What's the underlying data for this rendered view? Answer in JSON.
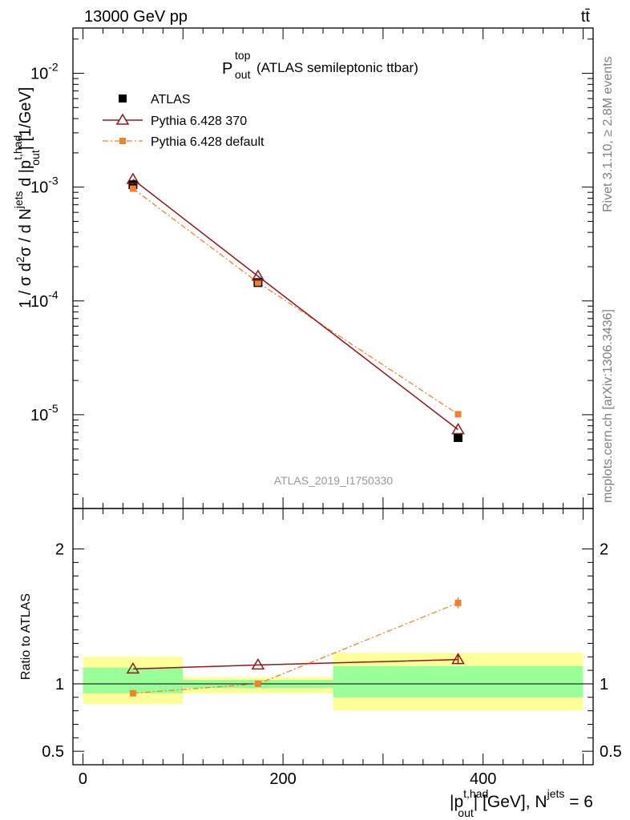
{
  "header": {
    "energy_label": "13000 GeV pp",
    "process_label": "tt̄"
  },
  "side_text": {
    "rivet": "Rivet 3.1.10, ≥ 2.8M events",
    "mcplots": "mcplots.cern.ch [arXiv:1306.3436]"
  },
  "chart_data": [
    {
      "type": "line",
      "title": "(ATLAS semileptonic ttbar)",
      "title_symbol": {
        "base": "P",
        "sup": "top",
        "sub": "out"
      },
      "ylabel": {
        "parts": [
          "1 / σ d",
          "2",
          "σ / d N",
          "jets",
          " d |p",
          "t,had",
          "out",
          "| [1/GeV]"
        ]
      },
      "yscale": "log",
      "ylim": [
        1.5e-06,
        0.025
      ],
      "xlim": [
        -10,
        510
      ],
      "y_ticks": [
        {
          "value": 0.01,
          "base": "10",
          "exp": "-2"
        },
        {
          "value": 0.001,
          "base": "10",
          "exp": "-3"
        },
        {
          "value": 0.0001,
          "base": "10",
          "exp": "-4"
        },
        {
          "value": 1e-05,
          "base": "10",
          "exp": "-5"
        }
      ],
      "analysis_label": "ATLAS_2019_I1750330",
      "legend_position": "top-left",
      "series": [
        {
          "name": "ATLAS",
          "color": "#000000",
          "marker": "square",
          "x": [
            50,
            175,
            375
          ],
          "y": [
            0.00105,
            0.000145,
            6.3e-06
          ]
        },
        {
          "name": "Pythia 6.428 370",
          "color": "#8b1a1a",
          "marker": "triangle-open",
          "x": [
            50,
            175,
            375
          ],
          "y": [
            0.00117,
            0.000165,
            7.4e-06
          ]
        },
        {
          "name": "Pythia 6.428 default",
          "color": "#f47f2c",
          "marker": "small-square",
          "dashed": true,
          "x": [
            50,
            175,
            375
          ],
          "y": [
            0.00097,
            0.000145,
            1.01e-05
          ]
        }
      ]
    },
    {
      "type": "line",
      "ylabel": "Ratio to ATLAS",
      "ylim": [
        0.4,
        2.3
      ],
      "y_ticks": [
        {
          "value": 0.5,
          "label": "0.5"
        },
        {
          "value": 1,
          "label": "1"
        },
        {
          "value": 2,
          "label": "2"
        }
      ],
      "xlim": [
        -10,
        510
      ],
      "x_ticks": [
        {
          "value": 0,
          "label": "0"
        },
        {
          "value": 200,
          "label": "200"
        },
        {
          "value": 400,
          "label": "400"
        }
      ],
      "xlabel": {
        "parts": [
          "|p",
          "t,had",
          "out",
          "| [GeV], N",
          "jets",
          " = 6"
        ]
      },
      "bands": [
        {
          "x": [
            0,
            100
          ],
          "yellow": [
            0.85,
            1.2
          ],
          "green": [
            0.93,
            1.12
          ]
        },
        {
          "x": [
            100,
            250
          ],
          "yellow": [
            0.93,
            1.05
          ],
          "green": [
            0.97,
            1.03
          ]
        },
        {
          "x": [
            250,
            500
          ],
          "yellow": [
            0.8,
            1.23
          ],
          "green": [
            0.9,
            1.13
          ]
        }
      ],
      "series": [
        {
          "name": "Pythia 6.428 370",
          "color": "#8b1a1a",
          "marker": "triangle-open",
          "x": [
            50,
            175,
            375
          ],
          "y": [
            1.11,
            1.14,
            1.18
          ],
          "err": [
            0,
            0,
            0.035
          ]
        },
        {
          "name": "Pythia 6.428 default",
          "color": "#f47f2c",
          "marker": "small-square",
          "dashed": true,
          "x": [
            50,
            175,
            375
          ],
          "y": [
            0.93,
            1.0,
            1.6
          ],
          "err": [
            0,
            0,
            0.04
          ]
        }
      ]
    }
  ]
}
